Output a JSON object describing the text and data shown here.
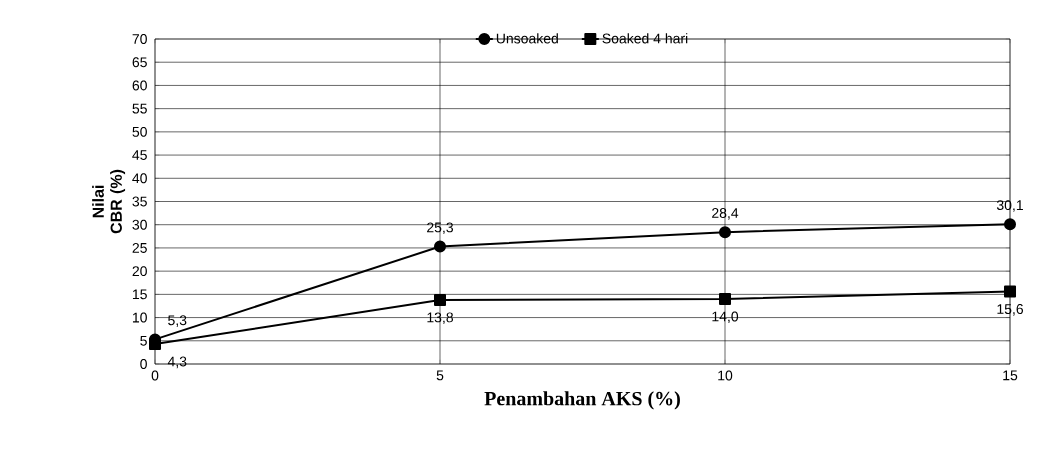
{
  "chart_data": {
    "type": "line",
    "xlabel": "Penambahan AKS (%)",
    "ylabel": "Nilai CBR (%)",
    "x": [
      0,
      5,
      10,
      15
    ],
    "series": [
      {
        "name": "Unsoaked",
        "color": "#000000",
        "marker": "circle",
        "values": [
          5.3,
          25.3,
          28.4,
          30.1
        ],
        "value_labels": [
          "5,3",
          "25,3",
          "28,4",
          "30,1"
        ]
      },
      {
        "name": "Soaked 4 hari",
        "color": "#000000",
        "marker": "square",
        "values": [
          4.3,
          13.8,
          14.0,
          15.6
        ],
        "value_labels": [
          "4,3",
          "13,8",
          "14,0",
          "15,6"
        ]
      }
    ],
    "xlim": [
      0,
      15
    ],
    "xticks": [
      0,
      5,
      10,
      15
    ],
    "ylim": [
      0,
      70
    ],
    "yticks": [
      0,
      5,
      10,
      15,
      20,
      25,
      30,
      35,
      40,
      45,
      50,
      55,
      60,
      65,
      70
    ],
    "grid": true,
    "legend": "top",
    "line_style": "solid"
  }
}
